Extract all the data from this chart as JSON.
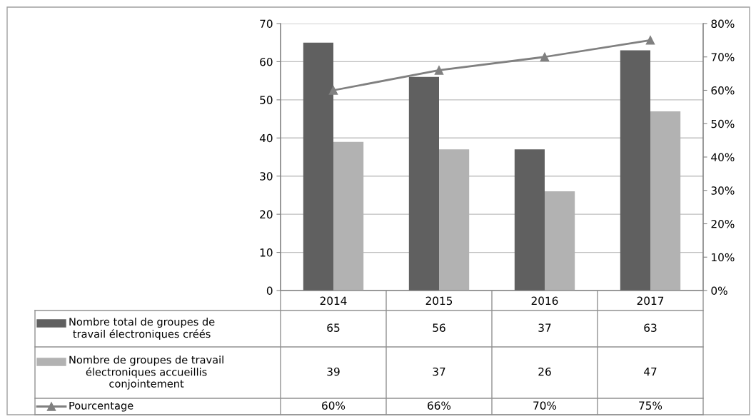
{
  "chart_data": {
    "type": "bar",
    "categories": [
      "2014",
      "2015",
      "2016",
      "2017"
    ],
    "series": [
      {
        "name": "Nombre total de groupes de\ntravail électroniques créés",
        "color": "#606060",
        "values": [
          65,
          56,
          37,
          63
        ],
        "value_labels": [
          "65",
          "56",
          "37",
          "63"
        ]
      },
      {
        "name": "Nombre de groupes de travail\nélectroniques accueillis\nconjointement",
        "color": "#b2b2b2",
        "values": [
          39,
          37,
          26,
          47
        ],
        "value_labels": [
          "39",
          "37",
          "26",
          "47"
        ]
      },
      {
        "name": "Pourcentage",
        "type": "line",
        "axis": "y2",
        "color": "#808080",
        "marker": "triangle",
        "values": [
          60,
          66,
          70,
          75
        ],
        "value_labels": [
          "60%",
          "66%",
          "70%",
          "75%"
        ]
      }
    ],
    "ylim": [
      0,
      70
    ],
    "yticks": [
      0,
      10,
      20,
      30,
      40,
      50,
      60,
      70
    ],
    "y2lim": [
      0,
      80
    ],
    "y2ticks": [
      {
        "value": 0,
        "label": "0%"
      },
      {
        "value": 10,
        "label": "10%"
      },
      {
        "value": 20,
        "label": "20%"
      },
      {
        "value": 30,
        "label": "30%"
      },
      {
        "value": 40,
        "label": "40%"
      },
      {
        "value": 50,
        "label": "50%"
      },
      {
        "value": 60,
        "label": "60%"
      },
      {
        "value": 70,
        "label": "70%"
      },
      {
        "value": 80,
        "label": "80%"
      }
    ],
    "grid": "y",
    "legend": "bottom left"
  }
}
